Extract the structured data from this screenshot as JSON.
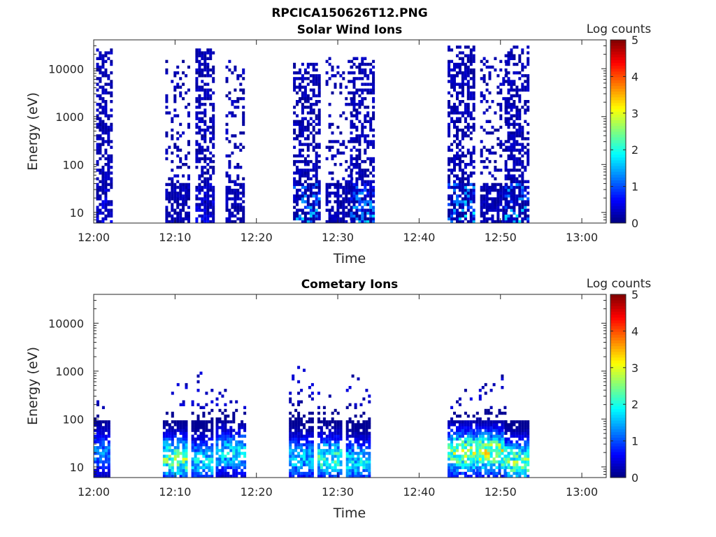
{
  "figure_title": "RPCICA150626T12.PNG",
  "colorbar": {
    "label": "Log counts",
    "ticks": [
      "0",
      "1",
      "2",
      "3",
      "4",
      "5"
    ],
    "range": [
      0,
      5
    ],
    "colormap": "jet"
  },
  "chart_data": [
    {
      "type": "heatmap",
      "title": "Solar Wind Ions",
      "xlabel": "Time",
      "ylabel": "Energy (eV)",
      "x_range_min": [
        0,
        63
      ],
      "x_tick_labels": [
        "12:00",
        "12:10",
        "12:20",
        "12:30",
        "12:40",
        "12:50",
        "13:00"
      ],
      "y_scale": "log",
      "y_range": [
        6,
        40000
      ],
      "y_tick_labels": [
        "10",
        "100",
        "1000",
        "10000"
      ],
      "clusters": [
        {
          "time_min": [
            0.3,
            2.1
          ],
          "energy_top": 28000,
          "core_max": 0.8,
          "low_peak": 0.8
        },
        {
          "time_min": [
            8.8,
            11.8
          ],
          "energy_top": 17000,
          "core_max": 0.4,
          "low_peak": 0.3
        },
        {
          "time_min": [
            12.5,
            14.8
          ],
          "energy_top": 28000,
          "core_max": 0.8,
          "low_peak": 0.8
        },
        {
          "time_min": [
            16.2,
            18.5
          ],
          "energy_top": 17000,
          "core_max": 0.4,
          "low_peak": 0.3
        },
        {
          "time_min": [
            24.5,
            27.8
          ],
          "energy_top": 14000,
          "core_max": 0.8,
          "low_peak": 1.8
        },
        {
          "time_min": [
            28.5,
            31.8
          ],
          "energy_top": 17000,
          "core_max": 0.4,
          "low_peak": 0.3
        },
        {
          "time_min": [
            31.5,
            34.5
          ],
          "energy_top": 18000,
          "core_max": 0.8,
          "low_peak": 1.8
        },
        {
          "time_min": [
            43.5,
            46.8
          ],
          "energy_top": 32000,
          "core_max": 0.8,
          "low_peak": 2.0
        },
        {
          "time_min": [
            47.5,
            50.8
          ],
          "energy_top": 17000,
          "core_max": 0.4,
          "low_peak": 0.3
        },
        {
          "time_min": [
            50.5,
            53.5
          ],
          "energy_top": 30000,
          "core_max": 0.8,
          "low_peak": 2.0
        }
      ]
    },
    {
      "type": "heatmap",
      "title": "Cometary Ions",
      "xlabel": "Time",
      "ylabel": "Energy (eV)",
      "x_range_min": [
        0,
        63
      ],
      "x_tick_labels": [
        "12:00",
        "12:10",
        "12:20",
        "12:30",
        "12:40",
        "12:50",
        "13:00"
      ],
      "y_scale": "log",
      "y_range": [
        6,
        40000
      ],
      "y_tick_labels": [
        "10",
        "100",
        "1000",
        "10000"
      ],
      "clusters": [
        {
          "time_min": [
            0.0,
            2.0
          ],
          "energy_top": 280,
          "peak": 1.6,
          "peak_energy": 20
        },
        {
          "time_min": [
            8.5,
            11.5
          ],
          "energy_top": 700,
          "peak": 3.0,
          "peak_energy": 15
        },
        {
          "time_min": [
            12.0,
            14.5
          ],
          "energy_top": 1300,
          "peak": 2.2,
          "peak_energy": 13
        },
        {
          "time_min": [
            15.0,
            18.5
          ],
          "energy_top": 600,
          "peak": 2.2,
          "peak_energy": 20
        },
        {
          "time_min": [
            24.0,
            27.0
          ],
          "energy_top": 2500,
          "peak": 2.0,
          "peak_energy": 15
        },
        {
          "time_min": [
            27.5,
            30.5
          ],
          "energy_top": 500,
          "peak": 2.6,
          "peak_energy": 15
        },
        {
          "time_min": [
            31.0,
            34.0
          ],
          "energy_top": 900,
          "peak": 2.2,
          "peak_energy": 13
        },
        {
          "time_min": [
            43.5,
            47.0
          ],
          "energy_top": 500,
          "peak": 3.3,
          "peak_energy": 20
        },
        {
          "time_min": [
            47.0,
            50.5
          ],
          "energy_top": 1100,
          "peak": 3.5,
          "peak_energy": 20
        },
        {
          "time_min": [
            50.5,
            53.5
          ],
          "energy_top": 130,
          "peak": 3.0,
          "peak_energy": 13
        }
      ]
    }
  ]
}
